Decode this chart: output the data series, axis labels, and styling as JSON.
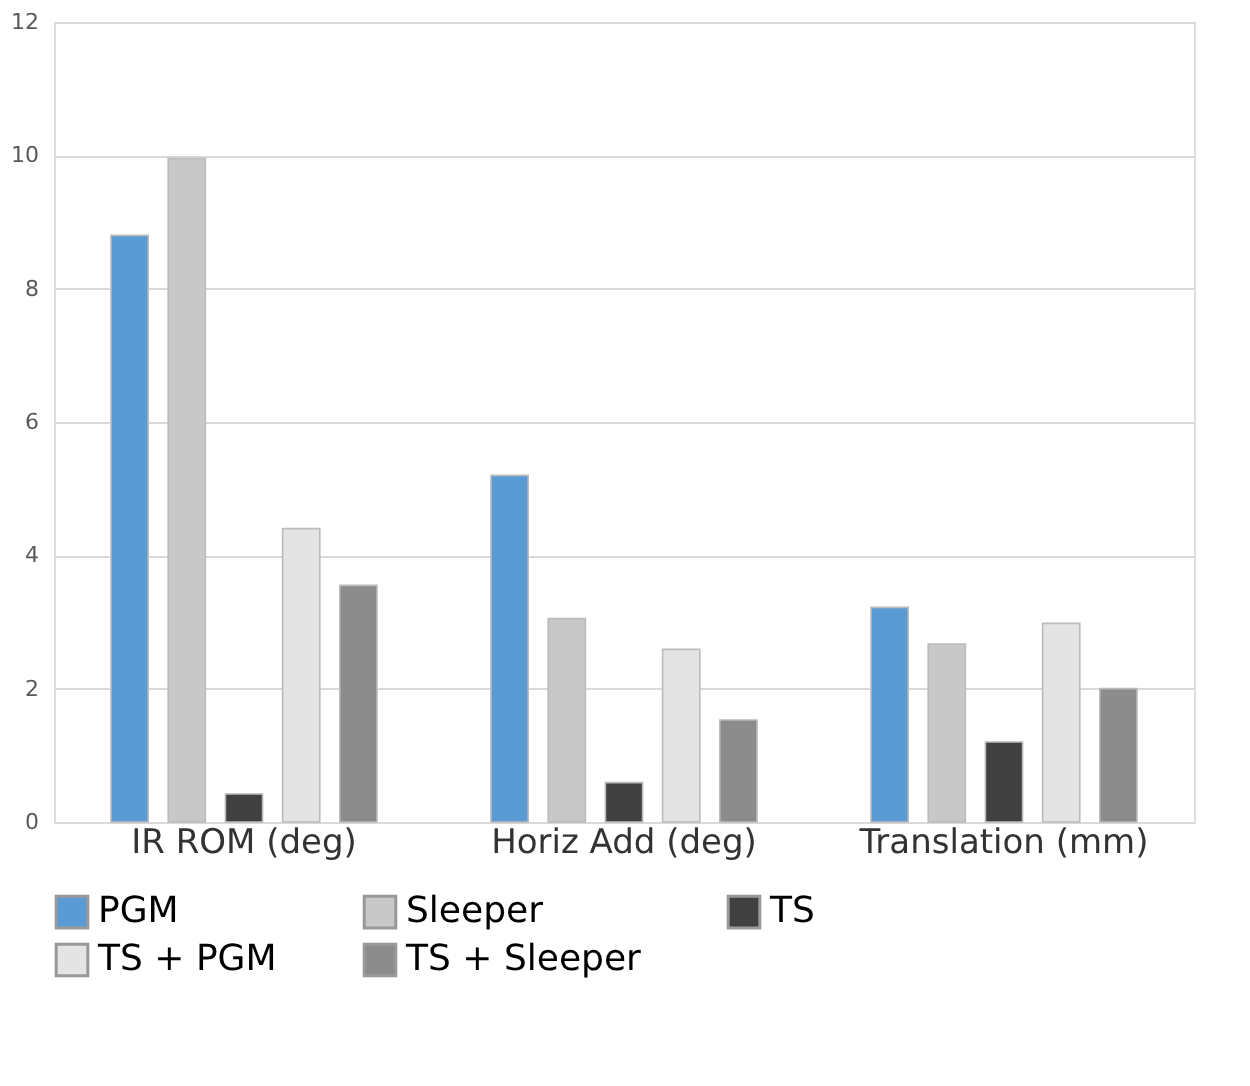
{
  "chart_data": {
    "type": "bar",
    "categories": [
      "IR ROM (deg)",
      "Horiz Add (deg)",
      "Translation (mm)"
    ],
    "series": [
      {
        "name": "PGM",
        "color": "#5b9bd5",
        "values": [
          8.8,
          5.2,
          3.22
        ]
      },
      {
        "name": "Sleeper",
        "color": "#c8c8c8",
        "values": [
          9.95,
          3.05,
          2.67
        ]
      },
      {
        "name": "TS",
        "color": "#404040",
        "values": [
          0.42,
          0.59,
          1.2
        ]
      },
      {
        "name": "TS + PGM",
        "color": "#e4e4e4",
        "values": [
          4.4,
          2.59,
          2.98
        ]
      },
      {
        "name": "TS + Sleeper",
        "color": "#8c8c8c",
        "values": [
          3.55,
          1.53,
          2.0
        ]
      }
    ],
    "ylim": [
      0,
      12
    ],
    "yticks": [
      0,
      2,
      4,
      6,
      8,
      10,
      12
    ],
    "grid": "y",
    "legend": "bottom"
  }
}
